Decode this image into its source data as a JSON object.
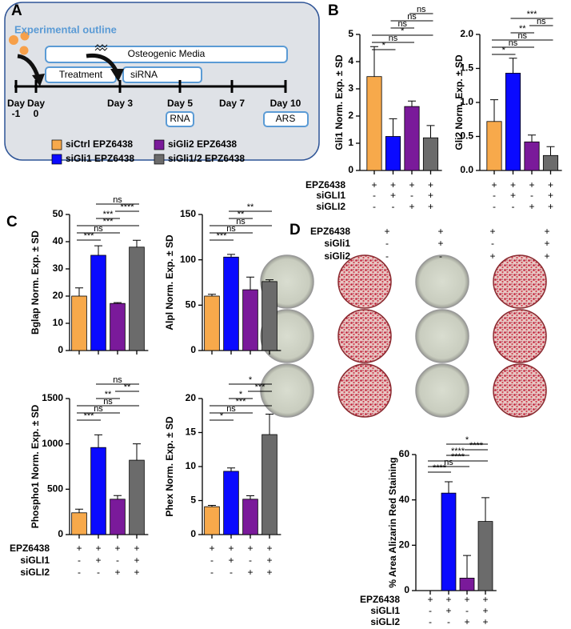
{
  "panel_labels": [
    "A",
    "B",
    "C",
    "D"
  ],
  "outline": {
    "title": "Experimental outline",
    "media": "Osteogenic Media",
    "treatment": "Treatment",
    "sirna": "siRNA",
    "days": [
      [
        "Day",
        "-1"
      ],
      [
        "Day",
        "0"
      ],
      [
        "Day 3"
      ],
      [
        "Day 5"
      ],
      [
        "Day 7"
      ],
      [
        "Day 10"
      ]
    ],
    "assays": [
      "RNA",
      "ARS"
    ],
    "legend": [
      {
        "name": "siCtrl EPZ6438",
        "color": "#f7a94b"
      },
      {
        "name": "siGli1 EPZ6438",
        "color": "#0a0aff"
      },
      {
        "name": "siGli2 EPZ6438",
        "color": "#7a1a9a"
      },
      {
        "name": "siGli1/2 EPZ6438",
        "color": "#6b6b6b"
      }
    ]
  },
  "condition_labels": {
    "B": [
      "EPZ6438",
      "siGLI1",
      "siGLI2"
    ],
    "C": [
      "EPZ6438",
      "siGLI1",
      "siGLI2"
    ],
    "D_plates": [
      "EPZ6438",
      "siGli1",
      "siGli2"
    ],
    "D": [
      "EPZ6438",
      "siGLI1",
      "siGLI2"
    ]
  },
  "plate_signs": [
    [
      "+",
      "+",
      "+",
      "+"
    ],
    [
      "-",
      "+",
      "-",
      "+"
    ],
    [
      "-",
      "-",
      "+",
      "+"
    ]
  ],
  "chart_data": [
    {
      "type": "bar",
      "ylabel": "Gli1 Norm. Exp. ± SD",
      "values": [
        3.45,
        1.25,
        2.35,
        1.2
      ],
      "errors": [
        1.1,
        0.65,
        0.2,
        0.45
      ],
      "colors": [
        "#f7a94b",
        "#0a0aff",
        "#7a1a9a",
        "#6b6b6b"
      ],
      "ylim": [
        0,
        5
      ],
      "yticks": [
        0,
        1,
        2,
        3,
        4,
        5
      ],
      "brackets": [
        {
          "from": 0,
          "to": 1,
          "label": "*"
        },
        {
          "from": 0,
          "to": 2,
          "label": "ns"
        },
        {
          "from": 0,
          "to": 3,
          "label": "*"
        },
        {
          "from": 1,
          "to": 2,
          "label": "ns"
        },
        {
          "from": 1,
          "to": 3,
          "label": "ns"
        },
        {
          "from": 2,
          "to": 3,
          "label": "ns"
        }
      ],
      "signs": [
        [
          "+",
          "+",
          "+",
          "+"
        ],
        [
          "-",
          "+",
          "-",
          "+"
        ],
        [
          "-",
          "-",
          "+",
          "+"
        ]
      ]
    },
    {
      "type": "bar",
      "ylabel": "Gli2 Norm. Exp. ± SD",
      "values": [
        0.72,
        1.43,
        0.42,
        0.22
      ],
      "errors": [
        0.32,
        0.22,
        0.1,
        0.13
      ],
      "colors": [
        "#f7a94b",
        "#0a0aff",
        "#7a1a9a",
        "#6b6b6b"
      ],
      "ylim": [
        0,
        2
      ],
      "yticks": [
        {
          "value": 0,
          "label": "0.0"
        },
        0.5,
        {
          "value": 1,
          "label": "1.0"
        },
        1.5,
        {
          "value": 2,
          "label": "2.0"
        }
      ],
      "brackets": [
        {
          "from": 0,
          "to": 1,
          "label": "*"
        },
        {
          "from": 0,
          "to": 2,
          "label": "ns"
        },
        {
          "from": 0,
          "to": 3,
          "label": "ns"
        },
        {
          "from": 1,
          "to": 2,
          "label": "**"
        },
        {
          "from": 2,
          "to": 3,
          "label": "ns"
        },
        {
          "from": 1,
          "to": 3,
          "label": "***"
        }
      ],
      "signs": [
        [
          "+",
          "+",
          "+",
          "+"
        ],
        [
          "-",
          "+",
          "-",
          "+"
        ],
        [
          "-",
          "-",
          "+",
          "+"
        ]
      ]
    },
    {
      "type": "bar",
      "ylabel": "Bglap Norm. Exp. ± SD",
      "values": [
        20,
        35,
        17.3,
        38
      ],
      "errors": [
        3,
        3.5,
        0.3,
        2.5
      ],
      "colors": [
        "#f7a94b",
        "#0a0aff",
        "#7a1a9a",
        "#6b6b6b"
      ],
      "ylim": [
        0,
        50
      ],
      "yticks": [
        0,
        10,
        20,
        30,
        40,
        50
      ],
      "brackets": [
        {
          "from": 0,
          "to": 1,
          "label": "***"
        },
        {
          "from": 0,
          "to": 2,
          "label": "ns"
        },
        {
          "from": 0,
          "to": 3,
          "label": "***"
        },
        {
          "from": 1,
          "to": 2,
          "label": "***"
        },
        {
          "from": 2,
          "to": 3,
          "label": "****"
        },
        {
          "from": 1,
          "to": 3,
          "label": "ns"
        }
      ]
    },
    {
      "type": "bar",
      "ylabel": "Alpl Norm. Exp. ± SD",
      "values": [
        60,
        103,
        67,
        76
      ],
      "errors": [
        2,
        3,
        14,
        2
      ],
      "colors": [
        "#f7a94b",
        "#0a0aff",
        "#7a1a9a",
        "#6b6b6b"
      ],
      "ylim": [
        0,
        150
      ],
      "yticks": [
        0,
        50,
        100,
        150
      ],
      "brackets": [
        {
          "from": 0,
          "to": 1,
          "label": "***"
        },
        {
          "from": 0,
          "to": 2,
          "label": "ns"
        },
        {
          "from": 0,
          "to": 3,
          "label": "ns"
        },
        {
          "from": 1,
          "to": 2,
          "label": "**"
        },
        {
          "from": 1,
          "to": 3,
          "label": "**"
        }
      ]
    },
    {
      "type": "bar",
      "ylabel": "Phospho1 Norm. Exp. ± SD",
      "values": [
        240,
        960,
        390,
        820
      ],
      "errors": [
        40,
        140,
        40,
        180
      ],
      "colors": [
        "#f7a94b",
        "#0a0aff",
        "#7a1a9a",
        "#6b6b6b"
      ],
      "ylim": [
        0,
        1500
      ],
      "yticks": [
        0,
        500,
        {
          "value": 1000,
          "label": "1000"
        },
        {
          "value": 1500,
          "label": "1500"
        }
      ],
      "brackets": [
        {
          "from": 0,
          "to": 1,
          "label": "***"
        },
        {
          "from": 0,
          "to": 2,
          "label": "ns"
        },
        {
          "from": 0,
          "to": 3,
          "label": "ns"
        },
        {
          "from": 1,
          "to": 2,
          "label": "**"
        },
        {
          "from": 2,
          "to": 3,
          "label": "**"
        },
        {
          "from": 1,
          "to": 3,
          "label": "ns"
        }
      ],
      "signs": [
        [
          "+",
          "+",
          "+",
          "+"
        ],
        [
          "-",
          "+",
          "-",
          "+"
        ],
        [
          "-",
          "-",
          "+",
          "+"
        ]
      ]
    },
    {
      "type": "bar",
      "ylabel": "Phex Norm. Exp. ± SD",
      "values": [
        4.1,
        9.3,
        5.2,
        14.7
      ],
      "errors": [
        0.2,
        0.5,
        0.5,
        3
      ],
      "colors": [
        "#f7a94b",
        "#0a0aff",
        "#7a1a9a",
        "#6b6b6b"
      ],
      "ylim": [
        0,
        20
      ],
      "yticks": [
        0,
        5,
        10,
        15,
        20
      ],
      "brackets": [
        {
          "from": 0,
          "to": 1,
          "label": "*"
        },
        {
          "from": 0,
          "to": 2,
          "label": "ns"
        },
        {
          "from": 0,
          "to": 3,
          "label": "***"
        },
        {
          "from": 1,
          "to": 2,
          "label": "*"
        },
        {
          "from": 2,
          "to": 3,
          "label": "***"
        },
        {
          "from": 1,
          "to": 3,
          "label": "*"
        }
      ],
      "signs": [
        [
          "+",
          "+",
          "+",
          "+"
        ],
        [
          "-",
          "+",
          "-",
          "+"
        ],
        [
          "-",
          "-",
          "+",
          "+"
        ]
      ]
    },
    {
      "type": "bar",
      "ylabel": "% Area Alizarin Red Staining",
      "values": [
        0,
        43,
        5.5,
        30.5
      ],
      "errors": [
        0,
        5,
        10,
        10.5
      ],
      "colors": [
        "#f7a94b",
        "#0a0aff",
        "#7a1a9a",
        "#6b6b6b"
      ],
      "ylim": [
        0,
        60
      ],
      "yticks": [
        0,
        20,
        40,
        60
      ],
      "brackets": [
        {
          "from": 0,
          "to": 1,
          "label": "****"
        },
        {
          "from": 0,
          "to": 2,
          "label": "ns"
        },
        {
          "from": 0,
          "to": 3,
          "label": "****"
        },
        {
          "from": 1,
          "to": 2,
          "label": "****"
        },
        {
          "from": 2,
          "to": 3,
          "label": "****"
        },
        {
          "from": 1,
          "to": 3,
          "label": "*"
        }
      ],
      "signs": [
        [
          "+",
          "+",
          "+",
          "+"
        ],
        [
          "-",
          "+",
          "-",
          "+"
        ],
        [
          "-",
          "-",
          "+",
          "+"
        ]
      ]
    }
  ]
}
